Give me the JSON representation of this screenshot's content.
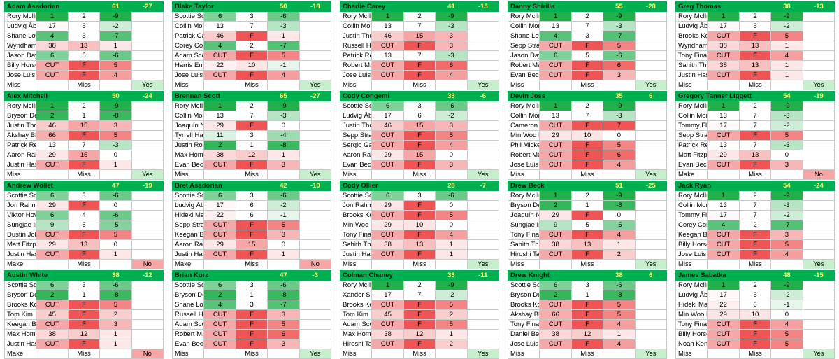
{
  "cards": [
    {
      "name": "Adam Asadorian",
      "score": 61,
      "to_par": -27,
      "rows": [
        [
          "Rory McIlroy",
          1,
          2,
          -9
        ],
        [
          "Ludvig Åberg",
          17,
          6,
          -2
        ],
        [
          "Shane Lowry",
          4,
          3,
          -7
        ],
        [
          "Wyndham Clark",
          38,
          13,
          1
        ],
        [
          "Jason Day",
          6,
          5,
          -6
        ],
        [
          "Billy Horschel",
          "CUT",
          "F",
          5
        ],
        [
          "Jose Luis Ballester (a)",
          "CUT",
          "F",
          4
        ]
      ],
      "footer": [
        "Miss",
        "Miss",
        "Yes"
      ]
    },
    {
      "name": "Blake Taylor",
      "score": 50,
      "to_par": -18,
      "rows": [
        [
          "Scottie Scheffler",
          6,
          3,
          -6
        ],
        [
          "Collin Morikawa",
          13,
          7,
          -3
        ],
        [
          "Patrick Cantlay",
          46,
          "F",
          1
        ],
        [
          "Corey Conners",
          4,
          2,
          -7
        ],
        [
          "Adam Scott",
          "CUT",
          "F",
          5
        ],
        [
          "Harris English",
          22,
          10,
          -1
        ],
        [
          "Jose Luis Ballester (a)",
          "CUT",
          "F",
          4
        ]
      ],
      "footer": [
        "Miss",
        "Miss",
        "Yes"
      ]
    },
    {
      "name": "Charlie Carey",
      "score": 41,
      "to_par": -15,
      "rows": [
        [
          "Rory McIlroy",
          1,
          2,
          -9
        ],
        [
          "Collin Morikawa",
          13,
          7,
          -3
        ],
        [
          "Justin Thomas",
          46,
          15,
          3
        ],
        [
          "Russell Henley",
          "CUT",
          "F",
          3
        ],
        [
          "Patrick Reed",
          13,
          7,
          -3
        ],
        [
          "Robert Macintyre",
          "CUT",
          "F",
          6
        ],
        [
          "Jose Luis Ballester (a)",
          "CUT",
          "F",
          4
        ]
      ],
      "footer": [
        "Miss",
        "Miss",
        "Yes"
      ]
    },
    {
      "name": "Danny Shirilla",
      "score": 55,
      "to_par": -28,
      "rows": [
        [
          "Rory McIlroy",
          1,
          2,
          -9
        ],
        [
          "Collin Morikawa",
          13,
          7,
          -3
        ],
        [
          "Shane Lowry",
          4,
          3,
          -7
        ],
        [
          "Sepp Straka",
          "CUT",
          "F",
          5
        ],
        [
          "Jason Day",
          6,
          5,
          -6
        ],
        [
          "Robert Macintyre",
          "CUT",
          "F",
          6
        ],
        [
          "Evan Beck (a)",
          "CUT",
          "F",
          3
        ]
      ],
      "footer": [
        "Miss",
        "Miss",
        "Yes"
      ]
    },
    {
      "name": "Greg Thomas",
      "score": 38,
      "to_par": -13,
      "rows": [
        [
          "Rory McIlroy",
          1,
          2,
          -9
        ],
        [
          "Ludvig Åberg",
          17,
          6,
          -2
        ],
        [
          "Brooks Koepka",
          "CUT",
          "F",
          5
        ],
        [
          "Wyndham Clark",
          38,
          13,
          1
        ],
        [
          "Tony Finau",
          "CUT",
          "F",
          4
        ],
        [
          "Sahith Theegala",
          38,
          13,
          1
        ],
        [
          "Justin Hastings (a)",
          "CUT",
          "F",
          1
        ]
      ],
      "footer": [
        "Miss",
        "Miss",
        "Yes"
      ]
    },
    {
      "name": "Alex Mitchell",
      "score": 50,
      "to_par": -24,
      "rows": [
        [
          "Rory McIlroy",
          1,
          2,
          -9
        ],
        [
          "Bryson Dechambeau",
          2,
          1,
          -8
        ],
        [
          "Justin Thomas",
          46,
          15,
          3
        ],
        [
          "Akshay Bhatia",
          66,
          "F",
          5
        ],
        [
          "Patrick Reed",
          13,
          7,
          -3
        ],
        [
          "Aaron Rai",
          29,
          15,
          0
        ],
        [
          "Justin Hastings (a)",
          "CUT",
          "F",
          1
        ]
      ],
      "footer": [
        "Miss",
        "Miss",
        "Yes"
      ]
    },
    {
      "name": "Brennan Scott",
      "score": 65,
      "to_par": -27,
      "rows": [
        [
          "Rory McIlroy",
          1,
          2,
          -9
        ],
        [
          "Collin Morikawa",
          13,
          7,
          -3
        ],
        [
          "Joaquín Niemann",
          29,
          "F",
          0
        ],
        [
          "Tyrrell Hatton",
          11,
          3,
          -4
        ],
        [
          "Justin Rose",
          2,
          1,
          -8
        ],
        [
          "Max Homa",
          38,
          12,
          1
        ],
        [
          "Evan Beck (a)",
          "CUT",
          "F",
          3
        ]
      ],
      "footer": [
        "Miss",
        "Miss",
        "Yes"
      ]
    },
    {
      "name": "Cody Congemi",
      "score": 33,
      "to_par": -6,
      "rows": [
        [
          "Scottie Scheffler",
          6,
          3,
          -6
        ],
        [
          "Ludvig Åberg",
          17,
          6,
          -2
        ],
        [
          "Justin Thomas",
          46,
          15,
          3
        ],
        [
          "Sepp Straka",
          "CUT",
          "F",
          5
        ],
        [
          "Sergio Garcia",
          "CUT",
          "F",
          4
        ],
        [
          "Aaron Rai",
          29,
          15,
          0
        ],
        [
          "Evan Beck (a)",
          "CUT",
          "F",
          3
        ]
      ],
      "footer": [
        "Miss",
        "Miss",
        "Yes"
      ]
    },
    {
      "name": "Devin Joss",
      "score": 35,
      "to_par": 6,
      "rows": [
        [
          "Rory McIlroy",
          1,
          2,
          -9
        ],
        [
          "Collin Morikawa",
          13,
          7,
          -3
        ],
        [
          "Cameron Smith",
          "CUT",
          "F",
          7
        ],
        [
          "Min Woo Lee",
          29,
          10,
          0
        ],
        [
          "Phil Mickelson",
          "CUT",
          "F",
          5
        ],
        [
          "Robert Macintyre",
          "CUT",
          "F",
          6
        ],
        [
          "Jose Luis Ballester (a)",
          "CUT",
          "F",
          4
        ]
      ],
      "footer": [
        "Miss",
        "Miss",
        "Yes"
      ]
    },
    {
      "name": "Gregory Tanner Liggett",
      "score": 54,
      "to_par": -19,
      "rows": [
        [
          "Rory McIlroy",
          1,
          2,
          -9
        ],
        [
          "Collin Morikawa",
          13,
          7,
          -3
        ],
        [
          "Tommy Fleetwood",
          17,
          7,
          -2
        ],
        [
          "Sepp Straka",
          "CUT",
          "F",
          5
        ],
        [
          "Patrick Reed",
          13,
          7,
          -3
        ],
        [
          "Matt Fitzpatrick",
          29,
          13,
          0
        ],
        [
          "Evan Beck (a)",
          "CUT",
          "F",
          3
        ]
      ],
      "footer": [
        "Make",
        "Miss",
        "No"
      ]
    },
    {
      "name": "Andrew Wollet",
      "score": 47,
      "to_par": -19,
      "rows": [
        [
          "Scottie Scheffler",
          6,
          3,
          -6
        ],
        [
          "Jon Rahm",
          29,
          "F",
          0
        ],
        [
          "Viktor Hovland",
          6,
          4,
          -6
        ],
        [
          "Sungjae Im",
          9,
          5,
          -5
        ],
        [
          "Dustin Johnson",
          "CUT",
          "F",
          5
        ],
        [
          "Matt Fitzpatrick",
          29,
          13,
          0
        ],
        [
          "Justin Hastings (a)",
          "CUT",
          "F",
          1
        ]
      ],
      "footer": [
        "Make",
        "Miss",
        "No"
      ]
    },
    {
      "name": "Bret Asadorian",
      "score": 42,
      "to_par": -10,
      "rows": [
        [
          "Scottie Scheffler",
          6,
          3,
          -6
        ],
        [
          "Ludvig Åberg",
          17,
          6,
          -2
        ],
        [
          "Hideki Matsuyama",
          22,
          6,
          -1
        ],
        [
          "Sepp Straka",
          "CUT",
          "F",
          5
        ],
        [
          "Keegan Bradley",
          "CUT",
          "F",
          3
        ],
        [
          "Aaron Rai",
          29,
          15,
          0
        ],
        [
          "Justin Hastings (a)",
          "CUT",
          "F",
          1
        ]
      ],
      "footer": [
        "Make",
        "Miss",
        "No"
      ]
    },
    {
      "name": "Cody Ollier",
      "score": 28,
      "to_par": -7,
      "rows": [
        [
          "Scottie Scheffler",
          6,
          3,
          -6
        ],
        [
          "Jon Rahm",
          29,
          "F",
          0
        ],
        [
          "Brooks Koepka",
          "CUT",
          "F",
          5
        ],
        [
          "Min Woo Lee",
          29,
          10,
          0
        ],
        [
          "Tony Finau",
          "CUT",
          "F",
          4
        ],
        [
          "Sahith Theegala",
          38,
          13,
          1
        ],
        [
          "Justin Hastings (a)",
          "CUT",
          "F",
          1
        ]
      ],
      "footer": [
        "Miss",
        "Miss",
        "Yes"
      ]
    },
    {
      "name": "Drew Beck",
      "score": 51,
      "to_par": -25,
      "rows": [
        [
          "Rory McIlroy",
          1,
          2,
          -9
        ],
        [
          "Bryson Dechambeau",
          2,
          1,
          -8
        ],
        [
          "Joaquín Niemann",
          29,
          "F",
          0
        ],
        [
          "Sungjae Im",
          9,
          5,
          -5
        ],
        [
          "Tony Finau",
          "CUT",
          "F",
          4
        ],
        [
          "Sahith Theegala",
          38,
          13,
          1
        ],
        [
          "Hiroshi Tai (a)",
          "CUT",
          "F",
          2
        ]
      ],
      "footer": [
        "Miss",
        "Miss",
        "Yes"
      ]
    },
    {
      "name": "Jack Ryan",
      "score": 54,
      "to_par": -24,
      "rows": [
        [
          "Rory McIlroy",
          1,
          2,
          -9
        ],
        [
          "Collin Morikawa",
          13,
          7,
          -3
        ],
        [
          "Tommy Fleetwood",
          17,
          7,
          -2
        ],
        [
          "Corey Conners",
          4,
          2,
          -7
        ],
        [
          "Keegan Bradley",
          "CUT",
          "F",
          3
        ],
        [
          "Billy Horschel",
          "CUT",
          "F",
          5
        ],
        [
          "Jose Luis Ballester (a)",
          "CUT",
          "F",
          4
        ]
      ],
      "footer": [
        "Miss",
        "Miss",
        "Yes"
      ]
    },
    {
      "name": "Austin White",
      "score": 38,
      "to_par": -12,
      "rows": [
        [
          "Scottie Scheffler",
          6,
          3,
          -6
        ],
        [
          "Bryson Dechambeau",
          2,
          1,
          -8
        ],
        [
          "Brooks Koepka",
          "CUT",
          "F",
          5
        ],
        [
          "Tom Kim",
          45,
          "F",
          2
        ],
        [
          "Keegan Bradley",
          "CUT",
          "F",
          3
        ],
        [
          "Max Homa",
          38,
          12,
          1
        ],
        [
          "Justin Hastings (a)",
          "CUT",
          "F",
          1
        ]
      ],
      "footer": [
        "Make",
        "Miss",
        "No"
      ]
    },
    {
      "name": "Brian Kurz",
      "score": 47,
      "to_par": -3,
      "rows": [
        [
          "Scottie Scheffler",
          6,
          3,
          -6
        ],
        [
          "Bryson Dechambeau",
          2,
          1,
          -8
        ],
        [
          "Shane Lowry",
          4,
          3,
          -7
        ],
        [
          "Russell Henley",
          "CUT",
          "F",
          3
        ],
        [
          "Adam Scott",
          "CUT",
          "F",
          5
        ],
        [
          "Robert Macintyre",
          "CUT",
          "F",
          6
        ],
        [
          "Evan Beck (a)",
          "CUT",
          "F",
          3
        ]
      ],
      "footer": [
        "Miss",
        "Miss",
        "Yes"
      ]
    },
    {
      "name": "Colman Chaney",
      "score": 33,
      "to_par": -11,
      "rows": [
        [
          "Rory McIlroy",
          1,
          2,
          -9
        ],
        [
          "Xander Schauffele",
          17,
          7,
          -2
        ],
        [
          "Brooks Koepka",
          "CUT",
          "F",
          5
        ],
        [
          "Tom Kim",
          45,
          "F",
          2
        ],
        [
          "Adam Scott",
          "CUT",
          "F",
          5
        ],
        [
          "Max Homa",
          38,
          12,
          1
        ],
        [
          "Hiroshi Tai (a)",
          "CUT",
          "F",
          2
        ]
      ],
      "footer": [
        "Miss",
        "Miss",
        "Yes"
      ]
    },
    {
      "name": "Drew Knight",
      "score": 38,
      "to_par": 6,
      "rows": [
        [
          "Scottie Scheffler",
          6,
          3,
          -6
        ],
        [
          "Bryson Dechambeau",
          2,
          1,
          -8
        ],
        [
          "Brooks Koepka",
          "CUT",
          "F",
          5
        ],
        [
          "Akshay Bhatia",
          66,
          "F",
          5
        ],
        [
          "Tony Finau",
          "CUT",
          "F",
          4
        ],
        [
          "Daniel Berger",
          38,
          12,
          1
        ],
        [
          "Jose Luis Ballester (a)",
          "CUT",
          "F",
          4
        ]
      ],
      "footer": [
        "Miss",
        "Miss",
        "Yes"
      ]
    },
    {
      "name": "James Sabatka",
      "score": 48,
      "to_par": -15,
      "rows": [
        [
          "Rory McIlroy",
          1,
          2,
          -9
        ],
        [
          "Ludvig Åberg",
          17,
          6,
          -2
        ],
        [
          "Hideki Matsuyama",
          22,
          6,
          -1
        ],
        [
          "Min Woo Lee",
          29,
          10,
          0
        ],
        [
          "Tony Finau",
          "CUT",
          "F",
          4
        ],
        [
          "Billy Horschel",
          "CUT",
          "F",
          5
        ],
        [
          "Noah Kent (a)",
          "CUT",
          "F",
          5
        ]
      ],
      "footer": [
        "Miss",
        "Miss",
        "Yes"
      ]
    }
  ]
}
